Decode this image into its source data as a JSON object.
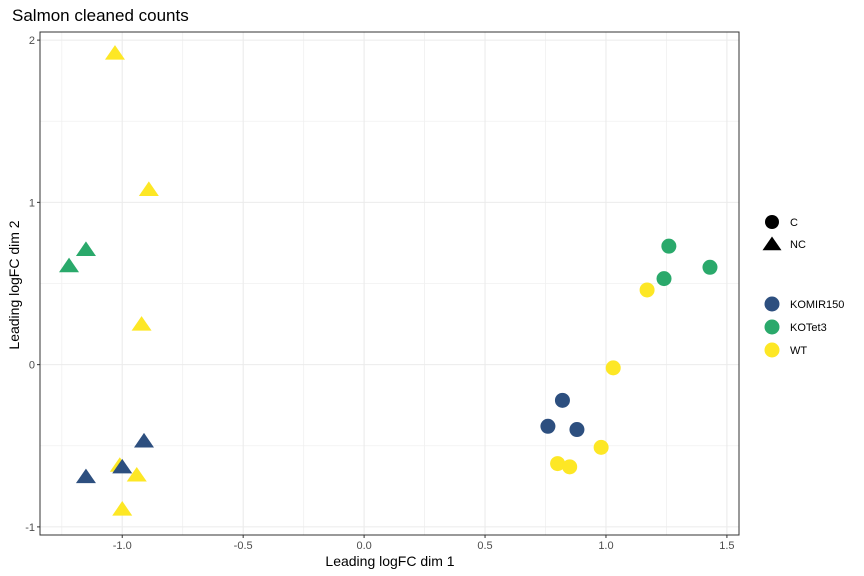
{
  "chart_data": {
    "type": "scatter",
    "title": "Salmon cleaned counts",
    "xlabel": "Leading logFC dim 1",
    "ylabel": "Leading logFC dim 2",
    "xlim": [
      -1.34,
      1.55
    ],
    "ylim": [
      -1.05,
      2.05
    ],
    "xticks": [
      -1.0,
      -0.5,
      0.0,
      0.5,
      1.0,
      1.5
    ],
    "xtick_labels": [
      "-1.0",
      "-0.5",
      "0.0",
      "0.5",
      "1.0",
      "1.5"
    ],
    "yticks": [
      -1,
      0,
      1,
      2
    ],
    "ytick_labels": [
      "-1",
      "0",
      "1",
      "2"
    ],
    "grid": true,
    "legend_position": "right",
    "shape_legend": [
      {
        "label": "C",
        "shape": "circle"
      },
      {
        "label": "NC",
        "shape": "triangle"
      }
    ],
    "color_legend": [
      {
        "label": "KOMIR150",
        "color": "#2d4f7f"
      },
      {
        "label": "KOTet3",
        "color": "#2aa96b"
      },
      {
        "label": "WT",
        "color": "#fde725"
      }
    ],
    "points": [
      {
        "x": -1.03,
        "y": 1.92,
        "group": "WT",
        "shape": "NC"
      },
      {
        "x": -0.89,
        "y": 1.08,
        "group": "WT",
        "shape": "NC"
      },
      {
        "x": -1.15,
        "y": 0.71,
        "group": "KOTet3",
        "shape": "NC"
      },
      {
        "x": -1.22,
        "y": 0.61,
        "group": "KOTet3",
        "shape": "NC"
      },
      {
        "x": -0.92,
        "y": 0.25,
        "group": "WT",
        "shape": "NC"
      },
      {
        "x": -0.91,
        "y": -0.47,
        "group": "KOMIR150",
        "shape": "NC"
      },
      {
        "x": -1.15,
        "y": -0.69,
        "group": "KOMIR150",
        "shape": "NC"
      },
      {
        "x": -1.01,
        "y": -0.62,
        "group": "WT",
        "shape": "NC"
      },
      {
        "x": -1.0,
        "y": -0.63,
        "group": "KOMIR150",
        "shape": "NC"
      },
      {
        "x": -0.94,
        "y": -0.68,
        "group": "WT",
        "shape": "NC"
      },
      {
        "x": -1.0,
        "y": -0.89,
        "group": "WT",
        "shape": "NC"
      },
      {
        "x": 1.26,
        "y": 0.73,
        "group": "KOTet3",
        "shape": "C"
      },
      {
        "x": 1.43,
        "y": 0.6,
        "group": "KOTet3",
        "shape": "C"
      },
      {
        "x": 1.24,
        "y": 0.53,
        "group": "KOTet3",
        "shape": "C"
      },
      {
        "x": 1.17,
        "y": 0.46,
        "group": "WT",
        "shape": "C"
      },
      {
        "x": 1.03,
        "y": -0.02,
        "group": "WT",
        "shape": "C"
      },
      {
        "x": 0.82,
        "y": -0.22,
        "group": "KOMIR150",
        "shape": "C"
      },
      {
        "x": 0.76,
        "y": -0.38,
        "group": "KOMIR150",
        "shape": "C"
      },
      {
        "x": 0.88,
        "y": -0.4,
        "group": "KOMIR150",
        "shape": "C"
      },
      {
        "x": 0.98,
        "y": -0.51,
        "group": "WT",
        "shape": "C"
      },
      {
        "x": 0.8,
        "y": -0.61,
        "group": "WT",
        "shape": "C"
      },
      {
        "x": 0.85,
        "y": -0.63,
        "group": "WT",
        "shape": "C"
      }
    ]
  }
}
